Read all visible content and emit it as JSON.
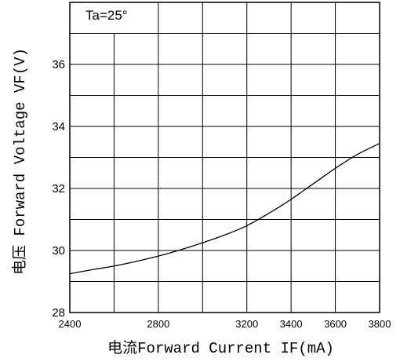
{
  "chart_data": {
    "type": "line",
    "title": "",
    "annotation": "Ta=25°",
    "xlabel": "电流Forward Current IF(mA)",
    "ylabel": "电压 Forward Voltage VF(V)",
    "xlim": [
      2400,
      3800
    ],
    "ylim": [
      28,
      38
    ],
    "x_ticks": [
      2400,
      2800,
      3200,
      3400,
      3600,
      3800
    ],
    "y_ticks": [
      28,
      30,
      32,
      34,
      36
    ],
    "x_grid_step": 200,
    "y_grid_step": 1,
    "grid": true,
    "series": [
      {
        "x": [
          2400,
          2500,
          2600,
          2700,
          2800,
          2900,
          3000,
          3100,
          3200,
          3300,
          3400,
          3500,
          3600,
          3700,
          3800
        ],
        "y": [
          29.25,
          29.38,
          29.5,
          29.65,
          29.82,
          30.02,
          30.25,
          30.5,
          30.8,
          31.2,
          31.65,
          32.15,
          32.65,
          33.1,
          33.45
        ]
      }
    ]
  },
  "colors": {
    "line": "#000000",
    "grid": "#000000",
    "background": "#ffffff"
  }
}
